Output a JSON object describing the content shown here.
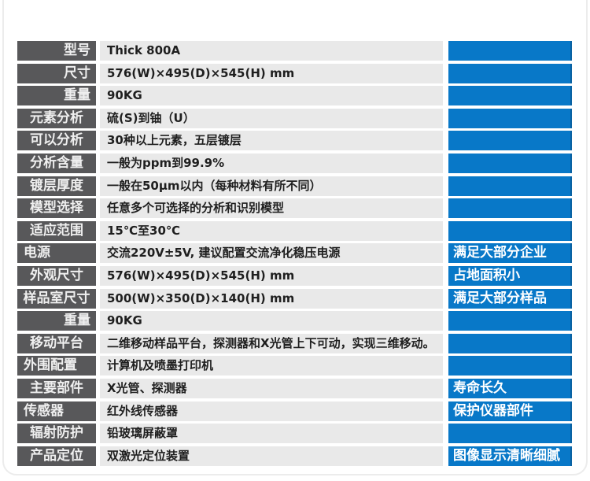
{
  "colors": {
    "label_bg": "#58585a",
    "label_text": "#efefef",
    "cell_bg": "#e9e9e9",
    "cell_text": "#1f1f1f",
    "accent_blue": "#0878c8",
    "accent_blue_edge": "#0a62a2",
    "card_border": "#ececec"
  },
  "table": {
    "rows": [
      {
        "label": "型号",
        "label_align": "right",
        "value": "Thick 800A",
        "highlight": ""
      },
      {
        "label": "尺寸",
        "label_align": "right",
        "value": "576(W)×495(D)×545(H) mm",
        "highlight": ""
      },
      {
        "label": "重量",
        "label_align": "right",
        "value": "90KG",
        "highlight": ""
      },
      {
        "label": "元素分析",
        "label_align": "center",
        "value": "硫(S)到铀（U）",
        "highlight": ""
      },
      {
        "label": "可以分析",
        "label_align": "center",
        "value": "30种以上元素，五层镀层",
        "highlight": ""
      },
      {
        "label": "分析含量",
        "label_align": "center",
        "value": "一般为ppm到99.9%",
        "highlight": ""
      },
      {
        "label": "镀层厚度",
        "label_align": "center",
        "value": "一般在50μm以内（每种材料有所不同）",
        "highlight": ""
      },
      {
        "label": "模型选择",
        "label_align": "center",
        "value": "任意多个可选择的分析和识别模型",
        "highlight": ""
      },
      {
        "label": "适应范围",
        "label_align": "center",
        "value": "15℃至30℃",
        "highlight": ""
      },
      {
        "label": "电源",
        "label_align": "left",
        "value": "交流220V±5V, 建议配置交流净化稳压电源",
        "highlight": "满足大部分企业"
      },
      {
        "label": "外观尺寸",
        "label_align": "center",
        "value": "576(W)×495(D)×545(H) mm",
        "highlight": "占地面积小"
      },
      {
        "label": "样品室尺寸",
        "label_align": "center",
        "value": "500(W)×350(D)×140(H) mm",
        "highlight": "满足大部分样品"
      },
      {
        "label": "重量",
        "label_align": "right",
        "value": "90KG",
        "highlight": ""
      },
      {
        "label": "移动平台",
        "label_align": "center",
        "value": "二维移动样品平台，探测器和X光管上下可动，实现三维移动。",
        "highlight": ""
      },
      {
        "label": "外围配置",
        "label_align": "left",
        "value": "计算机及喷墨打印机",
        "highlight": ""
      },
      {
        "label": "主要部件",
        "label_align": "center",
        "value": "X光管、探测器",
        "highlight": "寿命长久"
      },
      {
        "label": "传感器",
        "label_align": "left",
        "value": "红外线传感器",
        "highlight": "保护仪器部件"
      },
      {
        "label": "辐射防护",
        "label_align": "center",
        "value": "铅玻璃屏蔽罩",
        "highlight": ""
      },
      {
        "label": "产品定位",
        "label_align": "center",
        "value": "双激光定位装置",
        "highlight": "图像显示清晰细腻"
      }
    ]
  }
}
